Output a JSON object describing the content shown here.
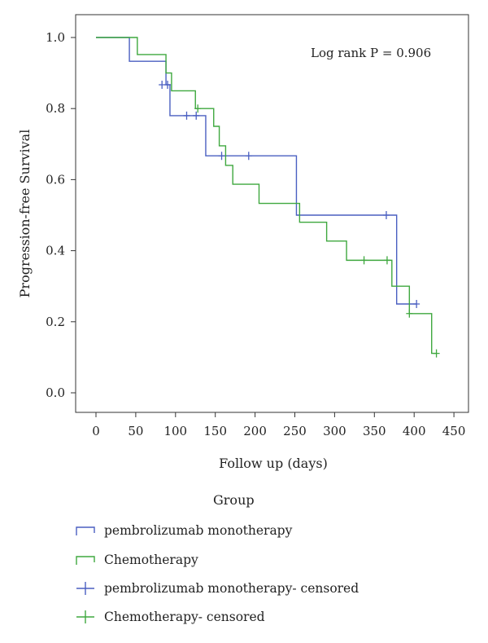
{
  "chart_data": {
    "type": "line",
    "ylabel": "Progression-free Survival",
    "xlabel": "Follow up (days)",
    "annotation": "Log rank P = 0.906",
    "xlim": [
      0,
      450
    ],
    "ylim": [
      0,
      1
    ],
    "x_ticks": [
      "0",
      "50",
      "100",
      "150",
      "200",
      "250",
      "300",
      "350",
      "400",
      "450"
    ],
    "y_ticks": [
      "0.0",
      "0.2",
      "0.4",
      "0.6",
      "0.8",
      "1.0"
    ],
    "grid": false,
    "legend_position": "bottom",
    "series": [
      {
        "name": "pembrolizumab monotherapy",
        "color": "#4a5fc1",
        "step": [
          [
            0,
            1.0
          ],
          [
            42,
            0.933
          ],
          [
            88,
            0.867
          ],
          [
            93,
            0.78
          ],
          [
            138,
            0.667
          ],
          [
            252,
            0.5
          ],
          [
            378,
            0.25
          ],
          [
            403,
            0.25
          ]
        ],
        "censored": [
          [
            83,
            0.867
          ],
          [
            90,
            0.867
          ],
          [
            114,
            0.78
          ],
          [
            126,
            0.78
          ],
          [
            158,
            0.667
          ],
          [
            192,
            0.667
          ],
          [
            365,
            0.5
          ],
          [
            403,
            0.25
          ]
        ]
      },
      {
        "name": "Chemotherapy",
        "color": "#3fa83f",
        "step": [
          [
            0,
            1.0
          ],
          [
            52,
            0.952
          ],
          [
            88,
            0.9
          ],
          [
            95,
            0.85
          ],
          [
            125,
            0.8
          ],
          [
            148,
            0.75
          ],
          [
            155,
            0.695
          ],
          [
            163,
            0.64
          ],
          [
            172,
            0.587
          ],
          [
            205,
            0.533
          ],
          [
            256,
            0.48
          ],
          [
            290,
            0.427
          ],
          [
            315,
            0.373
          ],
          [
            372,
            0.3
          ],
          [
            394,
            0.223
          ],
          [
            422,
            0.111
          ],
          [
            428,
            0.111
          ]
        ],
        "censored": [
          [
            128,
            0.8
          ],
          [
            337,
            0.373
          ],
          [
            366,
            0.373
          ],
          [
            394,
            0.223
          ],
          [
            428,
            0.111
          ]
        ]
      }
    ]
  },
  "legend": {
    "title": "Group",
    "items": [
      {
        "label": "pembrolizumab monotherapy",
        "kind": "step",
        "color": "#4a5fc1"
      },
      {
        "label": "Chemotherapy",
        "kind": "step",
        "color": "#3fa83f"
      },
      {
        "label": "pembrolizumab monotherapy- censored",
        "kind": "cross",
        "color": "#4a5fc1"
      },
      {
        "label": "Chemotherapy- censored",
        "kind": "cross",
        "color": "#3fa83f"
      }
    ]
  }
}
